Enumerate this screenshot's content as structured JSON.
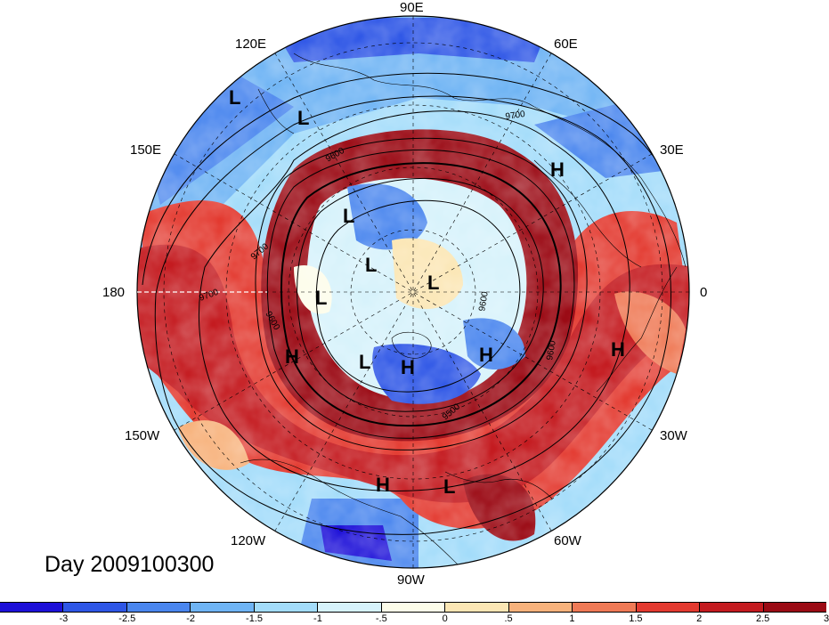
{
  "title": "Day 2009100300",
  "longitude_labels": {
    "lon_90e": "90E",
    "lon_60e": "60E",
    "lon_30e": "30E",
    "lon_0": "0",
    "lon_30w": "30W",
    "lon_60w": "60W",
    "lon_90w": "90W",
    "lon_120w": "120W",
    "lon_150w": "150W",
    "lon_180": "180",
    "lon_150e": "150E",
    "lon_120e": "120E"
  },
  "pressure_systems": [
    {
      "id": "h-1",
      "label": "H"
    },
    {
      "id": "h-2",
      "label": "H"
    },
    {
      "id": "h-3",
      "label": "H"
    },
    {
      "id": "h-4",
      "label": "H"
    },
    {
      "id": "h-5",
      "label": "H"
    },
    {
      "id": "h-6",
      "label": "H"
    },
    {
      "id": "l-1",
      "label": "L"
    },
    {
      "id": "l-2",
      "label": "L"
    },
    {
      "id": "l-3",
      "label": "L"
    },
    {
      "id": "l-4",
      "label": "L"
    },
    {
      "id": "l-5",
      "label": "L"
    },
    {
      "id": "l-6",
      "label": "L"
    },
    {
      "id": "l-7",
      "label": "L"
    },
    {
      "id": "l-8",
      "label": "L"
    }
  ],
  "contour_labels": [
    "9700",
    "9600",
    "9700",
    "9700",
    "9600",
    "9600",
    "9500",
    "9600"
  ],
  "colorbar": {
    "colors": [
      "#1d10d8",
      "#2e56e6",
      "#4a86ee",
      "#6fb4f4",
      "#a3dcfa",
      "#d6f2fb",
      "#fdfdea",
      "#fbe6b4",
      "#f7b27c",
      "#ef7a56",
      "#e33a30",
      "#c41b20",
      "#9b0b15"
    ],
    "ticks": [
      "-3",
      "-2.5",
      "-2",
      "-1.5",
      "-1",
      "-.5",
      "0",
      ".5",
      "1",
      "1.5",
      "2",
      "2.5",
      "3"
    ]
  }
}
